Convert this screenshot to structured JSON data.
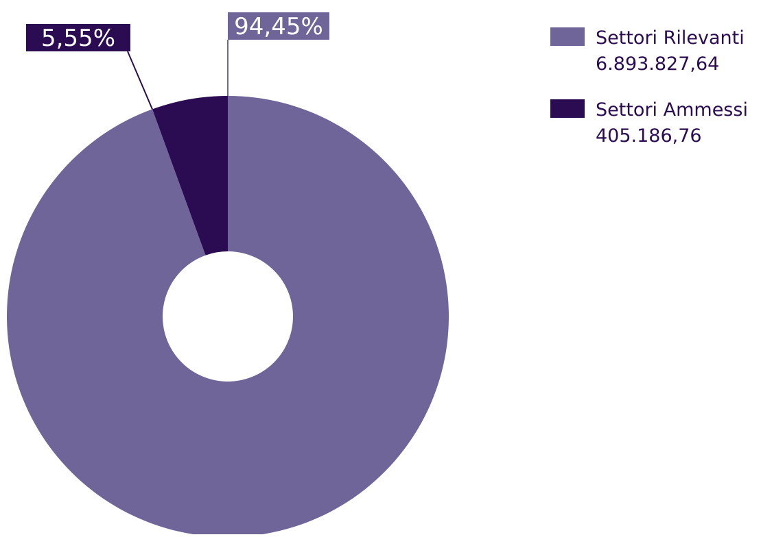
{
  "chart_data": {
    "type": "pie",
    "categories": [
      "Settori Rilevanti",
      "Settori Ammessi"
    ],
    "values": [
      6893827.64,
      405186.76
    ],
    "value_labels": [
      "6.893.827,64",
      "405.186,76"
    ],
    "percent_labels": [
      "94,45%",
      "5,55%"
    ],
    "colors": [
      "#6f6599",
      "#2b0c52"
    ],
    "legend_placement": "top-right",
    "style": "donut",
    "start_angle_deg": 0,
    "direction": "clockwise"
  }
}
